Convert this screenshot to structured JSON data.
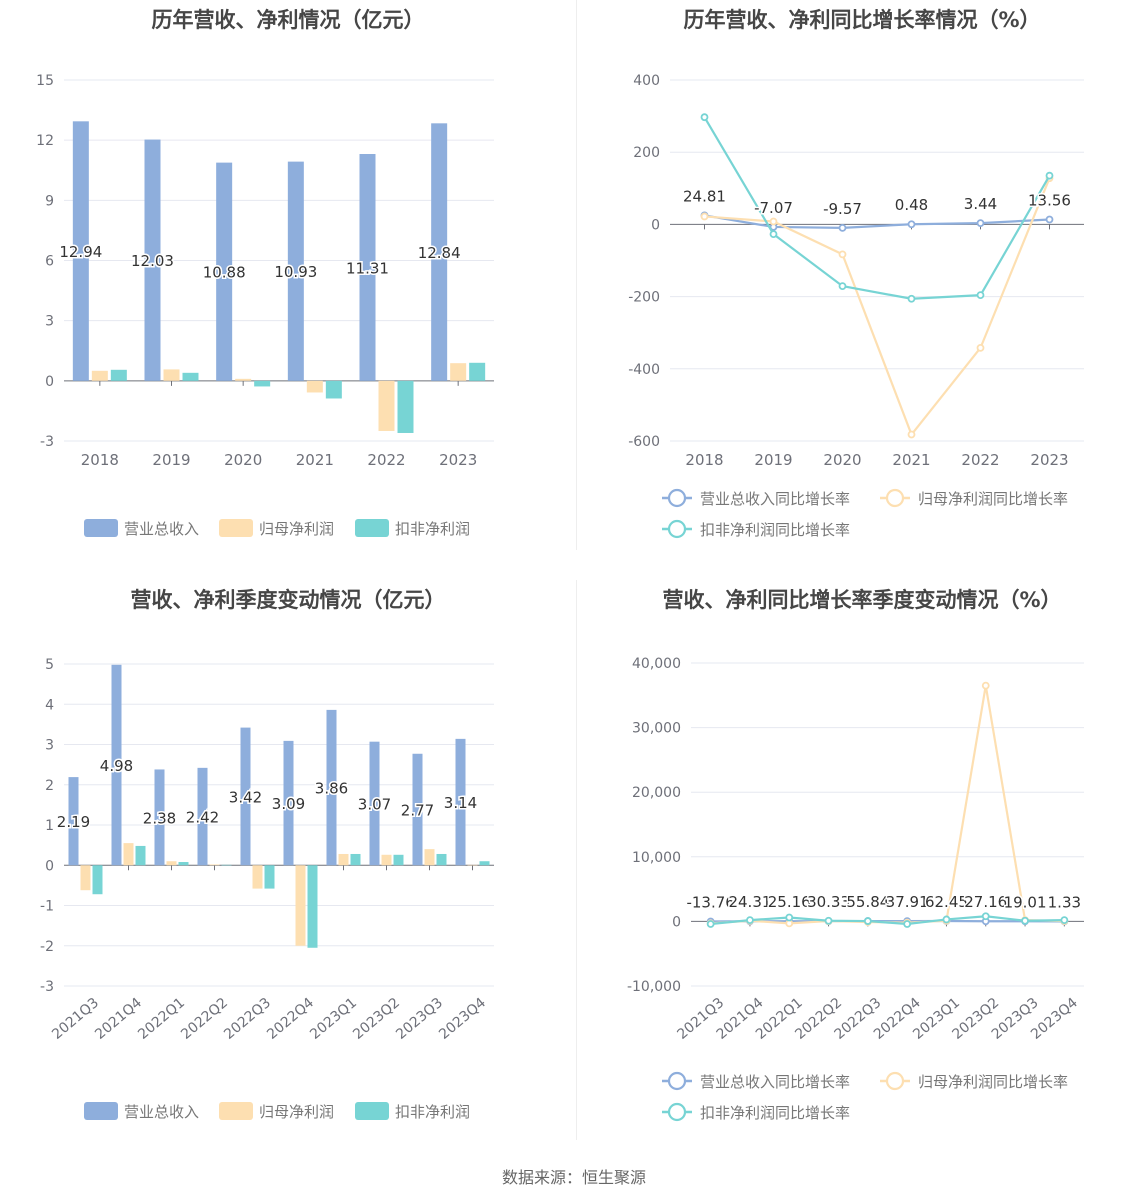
{
  "source_text": "数据来源：恒生聚源",
  "colors": {
    "revenue": "#8eaedc",
    "parent_profit": "#fddfb1",
    "deducted_profit": "#77d4d4",
    "axis_text": "#6e7079",
    "grid": "#e6e8f0",
    "title": "#464646",
    "label": "#333333",
    "legend_text": "#777777"
  },
  "chart_data": [
    {
      "type": "bar",
      "title": "历年营收、净利情况（亿元）",
      "categories": [
        "2018",
        "2019",
        "2020",
        "2021",
        "2022",
        "2023"
      ],
      "ylim": [
        -3,
        15
      ],
      "yticks": [
        -3,
        0,
        3,
        6,
        9,
        12,
        15
      ],
      "ytick_labels": [
        "-3",
        "0",
        "3",
        "6",
        "9",
        "12",
        "15"
      ],
      "grid": true,
      "legend_position": "bottom",
      "series": [
        {
          "name": "营业总收入",
          "values": [
            12.94,
            12.03,
            10.88,
            10.93,
            11.31,
            12.84
          ],
          "labels": [
            "12.94",
            "12.03",
            "10.88",
            "10.93",
            "11.31",
            "12.84"
          ],
          "color_key": "revenue"
        },
        {
          "name": "归母净利润",
          "values": [
            0.5,
            0.57,
            0.1,
            -0.58,
            -2.5,
            0.88
          ],
          "color_key": "parent_profit"
        },
        {
          "name": "扣非净利润",
          "values": [
            0.55,
            0.4,
            -0.28,
            -0.88,
            -2.6,
            0.9
          ],
          "color_key": "deducted_profit"
        }
      ]
    },
    {
      "type": "line",
      "title": "历年营收、净利同比增长率情况（%）",
      "categories": [
        "2018",
        "2019",
        "2020",
        "2021",
        "2022",
        "2023"
      ],
      "ylim": [
        -600,
        400
      ],
      "yticks": [
        -600,
        -400,
        -200,
        0,
        200,
        400
      ],
      "ytick_labels": [
        "-600",
        "-400",
        "-200",
        "0",
        "200",
        "400"
      ],
      "grid": true,
      "legend_position": "bottom",
      "series": [
        {
          "name": "营业总收入同比增长率",
          "values": [
            24.81,
            -7.07,
            -9.57,
            0.48,
            3.44,
            13.56
          ],
          "labels": [
            "24.81",
            "-7.07",
            "-9.57",
            "0.48",
            "3.44",
            "13.56"
          ],
          "color_key": "revenue"
        },
        {
          "name": "归母净利润同比增长率",
          "values": [
            22,
            8,
            -83,
            -582,
            -342,
            128
          ],
          "color_key": "parent_profit"
        },
        {
          "name": "扣非净利润同比增长率",
          "values": [
            297,
            -27,
            -171,
            -206,
            -196,
            135
          ],
          "color_key": "deducted_profit"
        }
      ]
    },
    {
      "type": "bar",
      "title": "营收、净利季度变动情况（亿元）",
      "categories": [
        "2021Q3",
        "2021Q4",
        "2022Q1",
        "2022Q2",
        "2022Q3",
        "2022Q4",
        "2023Q1",
        "2023Q2",
        "2023Q3",
        "2023Q4"
      ],
      "ylim": [
        -3,
        5
      ],
      "yticks": [
        -3,
        -2,
        -1,
        0,
        1,
        2,
        3,
        4,
        5
      ],
      "ytick_labels": [
        "-3",
        "-2",
        "-1",
        "0",
        "1",
        "2",
        "3",
        "4",
        "5"
      ],
      "grid": true,
      "legend_position": "bottom",
      "series": [
        {
          "name": "营业总收入",
          "values": [
            2.19,
            4.98,
            2.38,
            2.42,
            3.42,
            3.09,
            3.86,
            3.07,
            2.77,
            3.14
          ],
          "labels": [
            "2.19",
            "4.98",
            "2.38",
            "2.42",
            "3.42",
            "3.09",
            "3.86",
            "3.07",
            "2.77",
            "3.14"
          ],
          "color_key": "revenue"
        },
        {
          "name": "归母净利润",
          "values": [
            -0.62,
            0.55,
            0.1,
            0.02,
            -0.58,
            -2.0,
            0.28,
            0.26,
            0.4,
            0.01
          ],
          "color_key": "parent_profit"
        },
        {
          "name": "扣非净利润",
          "values": [
            -0.72,
            0.48,
            0.08,
            0.01,
            -0.58,
            -2.05,
            0.28,
            0.26,
            0.28,
            0.1
          ],
          "color_key": "deducted_profit"
        }
      ]
    },
    {
      "type": "line",
      "title": "营收、净利同比增长率季度变动情况（%）",
      "categories": [
        "2021Q3",
        "2021Q4",
        "2022Q1",
        "2022Q2",
        "2022Q3",
        "2022Q4",
        "2023Q1",
        "2023Q2",
        "2023Q3",
        "2023Q4"
      ],
      "ylim": [
        -10000,
        40000
      ],
      "yticks": [
        -10000,
        0,
        10000,
        20000,
        30000,
        40000
      ],
      "ytick_labels": [
        "-10,000",
        "0",
        "10,000",
        "20,000",
        "30,000",
        "40,000"
      ],
      "grid": true,
      "legend_position": "bottom",
      "series": [
        {
          "name": "营业总收入同比增长率",
          "values": [
            -13.76,
            24.31,
            25.16,
            30.33,
            55.84,
            37.91,
            62.45,
            27.16,
            19.01,
            1.33
          ],
          "labels": [
            "-13.76",
            "24.31",
            "25.16",
            "30.33",
            "55.84",
            "37.91",
            "62.45",
            "27.16",
            "19.01",
            "1.33"
          ],
          "color_key": "revenue"
        },
        {
          "name": "归母净利润同比增长率",
          "values": [
            -300,
            100,
            -300,
            50,
            -100,
            -200,
            100,
            36500,
            200,
            50
          ],
          "color_key": "parent_profit"
        },
        {
          "name": "扣非净利润同比增长率",
          "values": [
            -400,
            200,
            600,
            100,
            50,
            -400,
            300,
            800,
            100,
            200
          ],
          "color_key": "deducted_profit"
        }
      ]
    }
  ]
}
